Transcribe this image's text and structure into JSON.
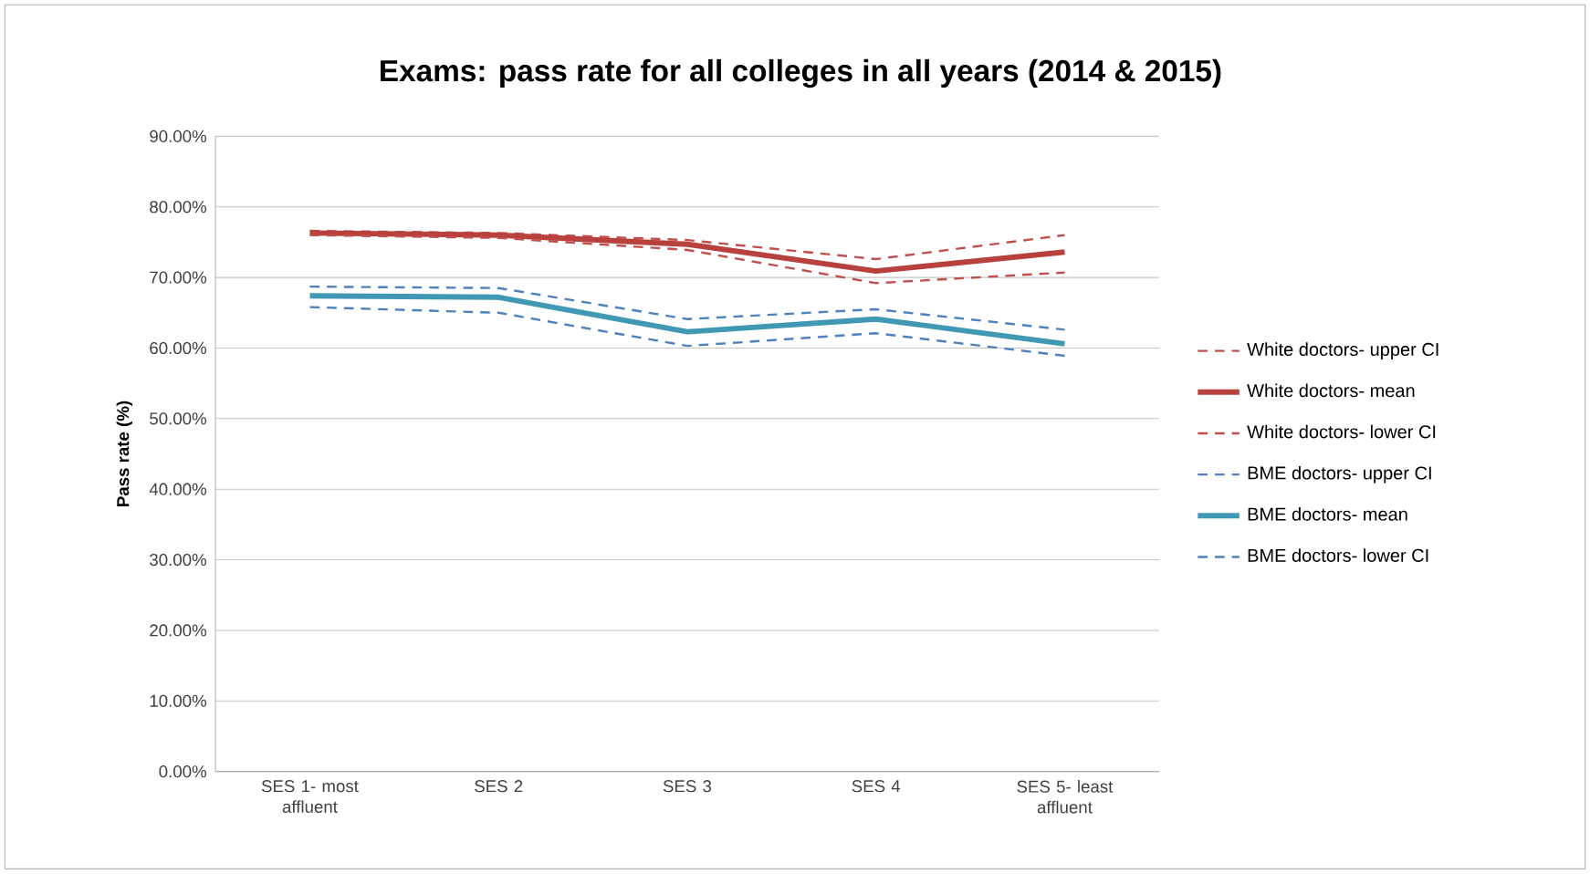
{
  "chart_data": {
    "type": "line",
    "title": "Exams: pass rate for all colleges in all years (2014 & 2015)",
    "ylabel": "Pass rate (%)",
    "categories": [
      "SES 1- most affluent",
      "SES 2",
      "SES 3",
      "SES 4",
      "SES 5- least affluent"
    ],
    "series": [
      {
        "name": "White doctors- upper CI",
        "color": "#c0504d",
        "line_style": "dashed",
        "values": [
          76.6,
          76.3,
          75.3,
          72.6,
          76.0
        ]
      },
      {
        "name": "White doctors- mean",
        "color": "#b8403d",
        "line_style": "solid",
        "values": [
          76.3,
          76.0,
          74.7,
          70.9,
          73.6
        ]
      },
      {
        "name": "White doctors- lower CI",
        "color": "#c0504d",
        "line_style": "dashed",
        "values": [
          76.0,
          75.6,
          73.9,
          69.2,
          70.7
        ]
      },
      {
        "name": "BME doctors- upper CI",
        "color": "#4f81bd",
        "line_style": "dashed",
        "values": [
          68.7,
          68.5,
          64.1,
          65.5,
          62.6
        ]
      },
      {
        "name": "BME doctors- mean",
        "color": "#4198b5",
        "line_style": "solid",
        "values": [
          67.4,
          67.2,
          62.3,
          64.1,
          60.6
        ]
      },
      {
        "name": "BME doctors- lower CI",
        "color": "#4f81bd",
        "line_style": "dashed",
        "values": [
          65.8,
          65.0,
          60.3,
          62.1,
          58.9
        ]
      }
    ],
    "ylim": [
      0,
      90
    ],
    "yticks": [
      {
        "value": 0,
        "label": "0.00%"
      },
      {
        "value": 10,
        "label": "10.00%"
      },
      {
        "value": 20,
        "label": "20.00%"
      },
      {
        "value": 30,
        "label": "30.00%"
      },
      {
        "value": 40,
        "label": "40.00%"
      },
      {
        "value": 50,
        "label": "50.00%"
      },
      {
        "value": 60,
        "label": "60.00%"
      },
      {
        "value": 70,
        "label": "70.00%"
      },
      {
        "value": 80,
        "label": "80.00%"
      },
      {
        "value": 90,
        "label": "90.00%"
      }
    ],
    "grid": "y",
    "legend": "right",
    "marker": "none"
  }
}
